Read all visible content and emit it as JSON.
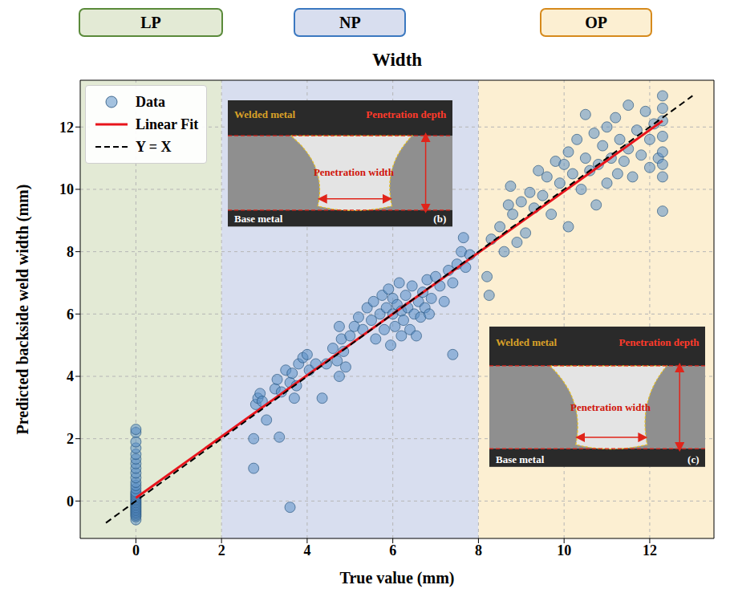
{
  "chart_data": {
    "type": "scatter",
    "title": "Width",
    "x_label": "True value (mm)",
    "y_label": "Predicted backside weld width (mm)",
    "xlim": [
      -1.3,
      13.5
    ],
    "ylim": [
      -1.2,
      13.5
    ],
    "xticks": [
      0,
      2,
      4,
      6,
      8,
      10,
      12
    ],
    "yticks": [
      0,
      2,
      4,
      6,
      8,
      10,
      12
    ],
    "grid": true,
    "legend": "upper left",
    "regions": [
      {
        "label": "LP",
        "range": [
          -1.3,
          2
        ],
        "color": "#e3ead5"
      },
      {
        "label": "NP",
        "range": [
          2,
          8
        ],
        "color": "#d8deef"
      },
      {
        "label": "OP",
        "range": [
          8,
          13.5
        ],
        "color": "#fcefd2"
      }
    ],
    "series": [
      {
        "name": "Data",
        "type": "scatter",
        "marker": "circle",
        "color": "#5b8fc7",
        "x": [
          0,
          0,
          0,
          0,
          0,
          0,
          0,
          0,
          0,
          0,
          0,
          0,
          0,
          0,
          0,
          0,
          0,
          0,
          0,
          0,
          0,
          0,
          0,
          0,
          0,
          0,
          0,
          0,
          0,
          0,
          0,
          2.75,
          2.75,
          2.8,
          2.85,
          2.9,
          2.95,
          3.05,
          3.25,
          3.3,
          3.35,
          3.4,
          3.5,
          3.6,
          3.6,
          3.65,
          3.7,
          3.75,
          3.8,
          3.9,
          4.0,
          4.05,
          4.2,
          4.35,
          4.45,
          4.6,
          4.7,
          4.75,
          4.75,
          4.8,
          4.85,
          4.9,
          5.0,
          5.1,
          5.2,
          5.3,
          5.4,
          5.5,
          5.55,
          5.6,
          5.7,
          5.75,
          5.8,
          5.85,
          5.9,
          5.95,
          6.0,
          6.0,
          6.05,
          6.1,
          6.15,
          6.2,
          6.2,
          6.25,
          6.3,
          6.35,
          6.4,
          6.45,
          6.5,
          6.55,
          6.6,
          6.65,
          6.7,
          6.75,
          6.8,
          6.85,
          6.9,
          7.0,
          7.1,
          7.2,
          7.3,
          7.4,
          7.4,
          7.5,
          7.6,
          7.65,
          7.7,
          7.8,
          8.2,
          8.25,
          8.3,
          8.5,
          8.6,
          8.7,
          8.75,
          8.8,
          8.9,
          9.0,
          9.1,
          9.2,
          9.3,
          9.4,
          9.5,
          9.6,
          9.7,
          9.8,
          9.9,
          10.0,
          10.1,
          10.1,
          10.2,
          10.3,
          10.4,
          10.5,
          10.5,
          10.6,
          10.7,
          10.75,
          10.8,
          10.9,
          11.0,
          11.0,
          11.1,
          11.2,
          11.25,
          11.3,
          11.4,
          11.5,
          11.5,
          11.6,
          11.7,
          11.8,
          11.9,
          12.0,
          12.0,
          12.1,
          12.2,
          12.3,
          12.3,
          12.3,
          12.3,
          12.3,
          12.3,
          12.3,
          12.3
        ],
        "values": [
          -0.6,
          -0.5,
          -0.45,
          -0.4,
          -0.35,
          -0.3,
          -0.25,
          -0.2,
          -0.15,
          -0.1,
          -0.05,
          0,
          0.05,
          0.1,
          0.15,
          0.2,
          0.25,
          0.3,
          0.4,
          0.5,
          0.6,
          0.75,
          0.9,
          1.05,
          1.2,
          1.35,
          1.5,
          1.7,
          1.9,
          2.2,
          2.3,
          2.0,
          1.05,
          3.1,
          3.3,
          3.45,
          3.2,
          2.6,
          3.6,
          3.9,
          2.05,
          3.5,
          4.2,
          -0.2,
          3.8,
          4.1,
          3.3,
          3.7,
          4.4,
          4.6,
          4.7,
          4.2,
          4.4,
          3.3,
          4.4,
          4.9,
          4.5,
          5.6,
          4.0,
          5.2,
          4.8,
          4.3,
          5.3,
          5.6,
          5.9,
          5.5,
          6.2,
          5.8,
          6.4,
          5.2,
          6.0,
          6.6,
          5.5,
          6.2,
          6.8,
          5.0,
          6.0,
          6.5,
          5.6,
          6.3,
          7.0,
          5.3,
          6.1,
          5.8,
          6.6,
          6.2,
          5.5,
          6.9,
          6.0,
          5.3,
          6.4,
          5.9,
          6.7,
          6.2,
          7.1,
          6.0,
          6.5,
          7.2,
          6.9,
          6.4,
          7.4,
          4.7,
          7.0,
          7.6,
          8.0,
          8.45,
          7.5,
          7.9,
          7.2,
          6.6,
          8.4,
          8.8,
          8.0,
          9.5,
          10.1,
          9.2,
          8.3,
          9.6,
          8.6,
          9.9,
          9.4,
          10.6,
          9.8,
          10.4,
          9.2,
          10.9,
          10.2,
          10.8,
          8.8,
          11.2,
          10.5,
          11.6,
          10.0,
          11.0,
          12.4,
          10.6,
          11.8,
          9.5,
          10.8,
          11.4,
          10.2,
          12.0,
          11.0,
          12.3,
          10.5,
          11.6,
          10.9,
          12.7,
          11.3,
          10.4,
          11.9,
          11.1,
          12.5,
          10.7,
          11.6,
          12.1,
          11.0,
          13.0,
          12.6,
          12.2,
          11.7,
          11.2,
          10.8,
          10.4,
          9.3
        ]
      },
      {
        "name": "Linear Fit",
        "type": "line",
        "line_style": "solid",
        "color": "#e8141c",
        "x": [
          0,
          12.3
        ],
        "values": [
          0.1,
          12.2
        ]
      },
      {
        "name": "Y = X",
        "type": "line",
        "line_style": "dashed",
        "color": "#000000",
        "x": [
          -0.7,
          13
        ],
        "values": [
          -0.7,
          13
        ]
      }
    ],
    "insets": [
      {
        "label": "(b)",
        "welded_metal": "Welded metal",
        "penetration_depth": "Penetration depth",
        "penetration_width": "Penetration width",
        "base_metal": "Base metal"
      },
      {
        "label": "(c)",
        "welded_metal": "Welded metal",
        "penetration_depth": "Penetration depth",
        "penetration_width": "Penetration width",
        "base_metal": "Base metal"
      }
    ]
  }
}
